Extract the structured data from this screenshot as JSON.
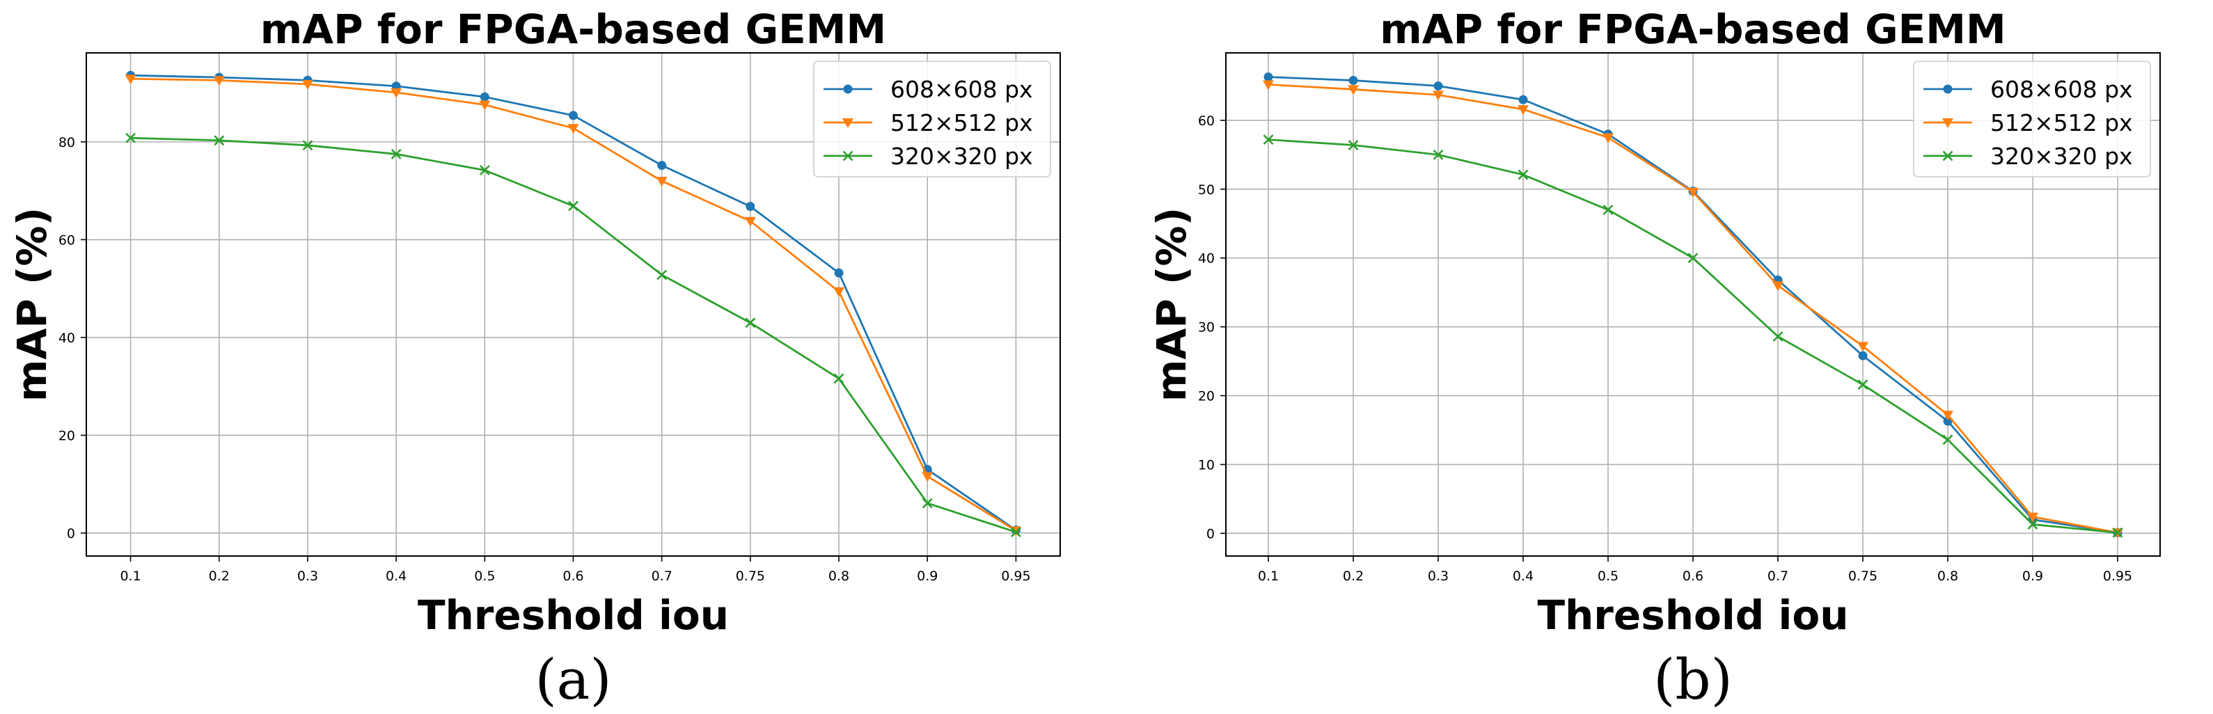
{
  "chart_data": [
    {
      "type": "line",
      "title": "mAP for FPGA-based GEMM",
      "xlabel": "Threshold iou",
      "ylabel": "mAP (%)",
      "caption": "(a)",
      "categories": [
        "0.1",
        "0.2",
        "0.3",
        "0.4",
        "0.5",
        "0.6",
        "0.7",
        "0.75",
        "0.8",
        "0.9",
        "0.95"
      ],
      "yticks": [
        0,
        20,
        40,
        60,
        80
      ],
      "ylim": [
        -4.7,
        98.2
      ],
      "grid": true,
      "legend_position": "upper right",
      "series": [
        {
          "name": "608×608 px",
          "color": "#1f77b4",
          "marker": "circle",
          "values": [
            93.6,
            93.2,
            92.6,
            91.4,
            89.2,
            85.4,
            75.2,
            66.8,
            53.2,
            13.0,
            0.6
          ]
        },
        {
          "name": "512×512 px",
          "color": "#ff7f0e",
          "marker": "triangle-down",
          "values": [
            92.9,
            92.6,
            91.8,
            90.1,
            87.6,
            82.8,
            72.0,
            63.8,
            49.4,
            11.6,
            0.5
          ]
        },
        {
          "name": "320×320 px",
          "color": "#2ca02c",
          "marker": "x",
          "values": [
            80.8,
            80.3,
            79.3,
            77.5,
            74.2,
            66.9,
            52.8,
            43.0,
            31.6,
            6.1,
            0.2
          ]
        }
      ]
    },
    {
      "type": "line",
      "title": "mAP for FPGA-based GEMM",
      "xlabel": "Threshold iou",
      "ylabel": "mAP (%)",
      "caption": "(b)",
      "categories": [
        "0.1",
        "0.2",
        "0.3",
        "0.4",
        "0.5",
        "0.6",
        "0.7",
        "0.75",
        "0.8",
        "0.9",
        "0.95"
      ],
      "yticks": [
        0,
        10,
        20,
        30,
        40,
        50,
        60
      ],
      "ylim": [
        -3.3,
        69.8
      ],
      "grid": true,
      "legend_position": "upper right",
      "series": [
        {
          "name": "608×608 px",
          "color": "#1f77b4",
          "marker": "circle",
          "values": [
            66.3,
            65.8,
            65.0,
            63.0,
            58.0,
            49.7,
            36.8,
            25.8,
            16.3,
            2.0,
            0.1
          ]
        },
        {
          "name": "512×512 px",
          "color": "#ff7f0e",
          "marker": "triangle-down",
          "values": [
            65.2,
            64.5,
            63.7,
            61.6,
            57.5,
            49.6,
            36.0,
            27.2,
            17.2,
            2.4,
            0.1
          ]
        },
        {
          "name": "320×320 px",
          "color": "#2ca02c",
          "marker": "x",
          "values": [
            57.2,
            56.4,
            55.0,
            52.1,
            47.0,
            40.0,
            28.6,
            21.6,
            13.6,
            1.3,
            0.1
          ]
        }
      ]
    }
  ]
}
